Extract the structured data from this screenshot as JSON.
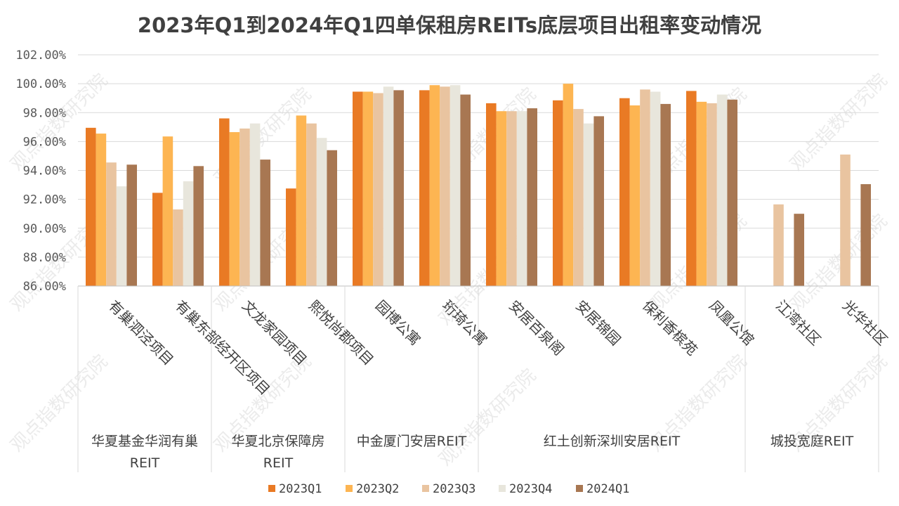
{
  "chart_data": {
    "type": "bar",
    "title": "2023年Q1到2024年Q1四单保租房REITs底层项目出租率变动情况",
    "xlabel": "",
    "ylabel": "",
    "ylim": [
      86,
      102
    ],
    "yticks": [
      "86.00%",
      "88.00%",
      "90.00%",
      "92.00%",
      "94.00%",
      "96.00%",
      "98.00%",
      "100.00%",
      "102.00%"
    ],
    "grid": true,
    "legend_position": "bottom",
    "categories": [
      "有巢泗泾项目",
      "有巢东部经开区项目",
      "文龙家园项目",
      "熙悦尚郡项目",
      "园博公寓",
      "珩琦公寓",
      "安居百泉阁",
      "安居锦园",
      "保利香槟苑",
      "凤凰公馆",
      "江湾社区",
      "光华社区"
    ],
    "groups": [
      {
        "label": "华夏基金华润有巢",
        "label2": "REIT",
        "start": 0,
        "end": 2
      },
      {
        "label": "华夏北京保障房",
        "label2": "REIT",
        "start": 2,
        "end": 4
      },
      {
        "label": "中金厦门安居REIT",
        "label2": "",
        "start": 4,
        "end": 6
      },
      {
        "label": "红土创新深圳安居REIT",
        "label2": "",
        "start": 6,
        "end": 10
      },
      {
        "label": "城投宽庭REIT",
        "label2": "",
        "start": 10,
        "end": 12
      }
    ],
    "series": [
      {
        "name": "2023Q1",
        "color": "#E97A24",
        "values": [
          96.95,
          92.45,
          97.6,
          92.75,
          99.45,
          99.55,
          98.65,
          98.85,
          99.0,
          99.5,
          null,
          null
        ]
      },
      {
        "name": "2023Q2",
        "color": "#FDB552",
        "values": [
          96.55,
          96.35,
          96.65,
          97.8,
          99.45,
          99.9,
          98.1,
          100.0,
          98.5,
          98.75,
          null,
          null
        ]
      },
      {
        "name": "2023Q3",
        "color": "#E9C4A0",
        "values": [
          94.55,
          91.3,
          96.9,
          97.25,
          99.35,
          99.8,
          98.1,
          98.25,
          99.6,
          98.65,
          91.65,
          95.1
        ]
      },
      {
        "name": "2023Q4",
        "color": "#E8E6DC",
        "values": [
          92.9,
          93.25,
          97.25,
          96.25,
          99.8,
          99.9,
          98.1,
          97.25,
          99.45,
          99.25,
          null,
          null
        ]
      },
      {
        "name": "2024Q1",
        "color": "#A87752",
        "values": [
          94.4,
          94.3,
          94.75,
          95.4,
          99.55,
          99.25,
          98.3,
          97.75,
          98.6,
          98.9,
          91.0,
          93.05
        ]
      }
    ],
    "watermark": "观点指数研究院"
  }
}
